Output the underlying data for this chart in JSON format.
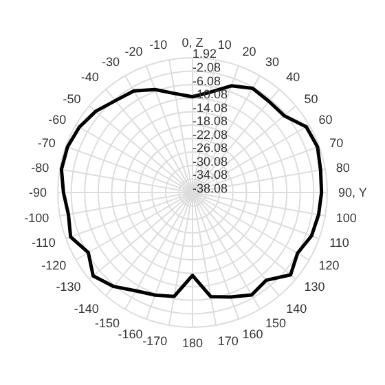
{
  "chart_data": {
    "type": "radar",
    "categories": [
      "0, Z",
      "10",
      "20",
      "30",
      "40",
      "50",
      "60",
      "70",
      "80",
      "90, Y",
      "100",
      "110",
      "120",
      "130",
      "140",
      "150",
      "160",
      "170",
      "180",
      "-170",
      "-160",
      "-150",
      "-140",
      "-130",
      "-120",
      "-110",
      "-100",
      "-90",
      "-80",
      "-70",
      "-60",
      "-50",
      "-40",
      "-30",
      "-20",
      "-10"
    ],
    "series": [
      {
        "color": "#000000",
        "values": [
          -9.6,
          -7.8,
          -4.3,
          -2.3,
          -2.7,
          -2.5,
          1.0,
          1.5,
          0.6,
          0.3,
          0.0,
          -0.4,
          -2.0,
          0.0,
          -4.0,
          -2.9,
          -5.0,
          -6.6,
          -13.4,
          -6.7,
          -5.6,
          -4.3,
          -1.6,
          0.5,
          -2.3,
          0.5,
          -0.6,
          0.3,
          1.5,
          1.5,
          0.8,
          -0.5,
          -2.4,
          -3.2,
          -5.5,
          -8.2
        ]
      }
    ],
    "ylim": [
      -38.08,
      1.92
    ],
    "yticks": [
      1.92,
      -2.08,
      -6.08,
      -10.08,
      -14.08,
      -18.08,
      -22.08,
      -26.08,
      -30.08,
      -34.08,
      -38.08
    ],
    "grid": true,
    "marker": "none",
    "line_style": "solid",
    "legend": false
  }
}
